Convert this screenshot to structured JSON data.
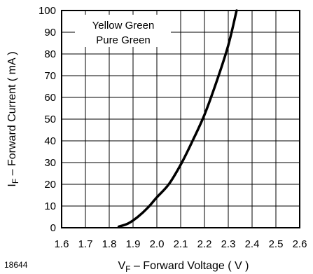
{
  "chart_data": {
    "type": "line",
    "title": "",
    "xlabel_main": "V",
    "xlabel_sub": "F",
    "xlabel_rest": " – Forward Voltage ( V )",
    "ylabel_main": "I",
    "ylabel_sub": "F",
    "ylabel_rest": " – Forward Current ( mA )",
    "xlim": [
      1.6,
      2.6
    ],
    "ylim": [
      0,
      100
    ],
    "xticks": [
      "1.6",
      "1.7",
      "1.8",
      "1.9",
      "2.0",
      "2.1",
      "2.2",
      "2.3",
      "2.4",
      "2.5",
      "2.6"
    ],
    "yticks": [
      "0",
      "10",
      "20",
      "30",
      "40",
      "50",
      "60",
      "70",
      "80",
      "90",
      "100"
    ],
    "grid": true,
    "legend_position": "top-left",
    "legend_lines": [
      "Yellow Green",
      "Pure Green"
    ],
    "series": [
      {
        "x": [
          1.84,
          1.88,
          1.92,
          1.96,
          2.0,
          2.05,
          2.1,
          2.15,
          2.2,
          2.25,
          2.3,
          2.335
        ],
        "y": [
          0.5,
          2,
          5,
          9,
          14,
          20,
          29,
          40,
          52,
          67,
          84,
          100
        ]
      }
    ]
  },
  "figure_id": "18644",
  "colors": {
    "line": "#000000",
    "grid": "#000000",
    "background": "#ffffff"
  }
}
